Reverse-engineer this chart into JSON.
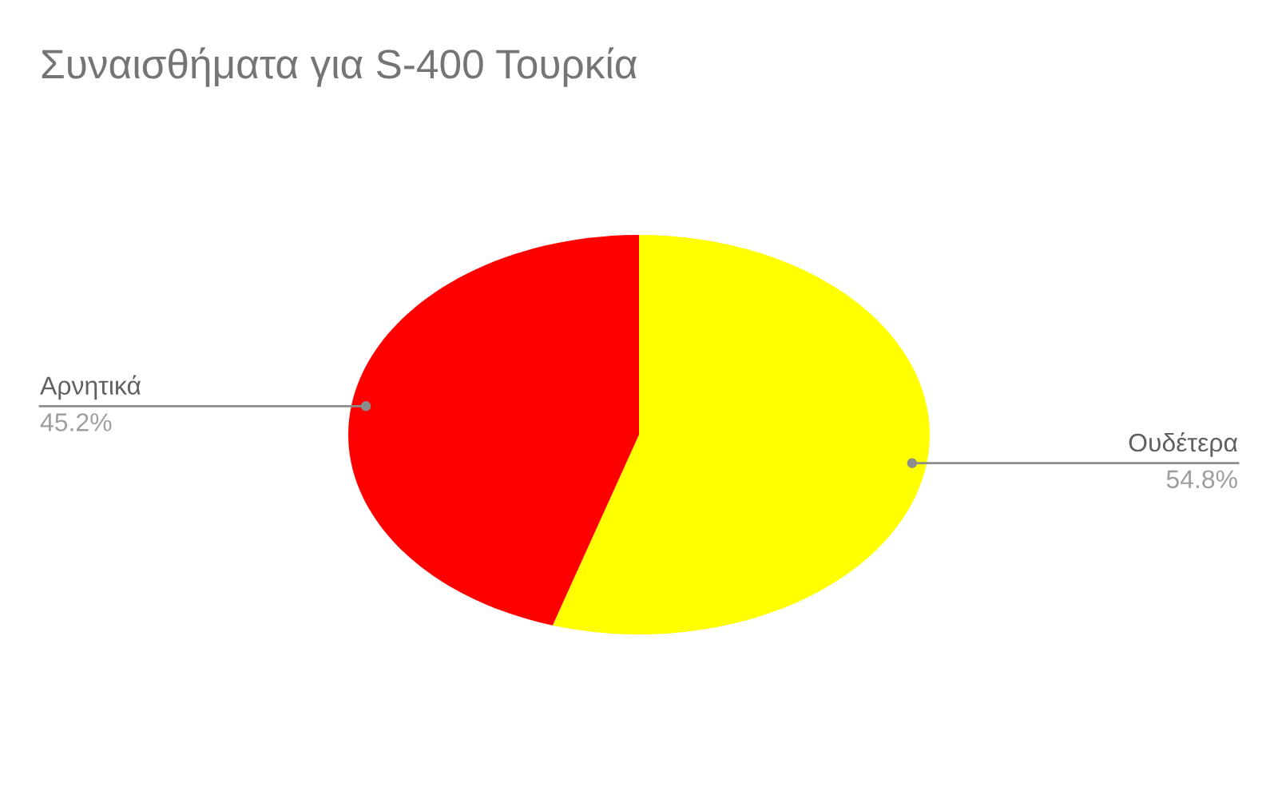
{
  "chart_data": {
    "type": "pie",
    "title": "Συναισθήματα για S-400 Τουρκία",
    "categories": [
      "Ουδέτερα",
      "Αρνητικά"
    ],
    "values": [
      54.8,
      45.2
    ],
    "colors": [
      "#ffff00",
      "#ff0000"
    ],
    "value_labels": [
      "54.8%",
      "45.2%"
    ]
  }
}
